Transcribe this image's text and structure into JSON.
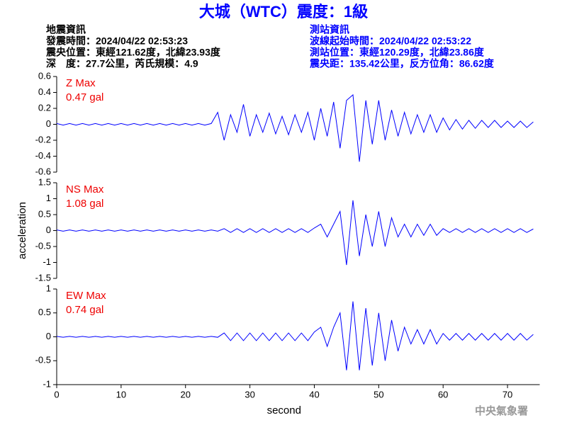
{
  "header": {
    "title": "大城（WTC）震度：1級",
    "left": [
      "地震資訊",
      "發震時間：2024/04/22 02:53:23",
      "震央位置：東經121.62度，北緯23.93度",
      "深　度：27.7公里，芮氏規模：4.9"
    ],
    "right": [
      "測站資訊",
      "波線起始時間：2024/04/22 02:53:22",
      "測站位置：東經120.29度，北緯23.86度",
      "震央距：135.42公里，反方位角：86.62度"
    ]
  },
  "footer": "中央氣象署",
  "chart_data": [
    {
      "type": "line",
      "label": "Z Max",
      "max_label": "0.47 gal",
      "color": "#0000ff",
      "xlim": [
        0,
        75
      ],
      "ylim": [
        -0.6,
        0.6
      ],
      "yticks": [
        0.6,
        0.4,
        0.2,
        0,
        -0.2,
        -0.4,
        -0.6
      ],
      "x": [
        0,
        1,
        2,
        3,
        4,
        5,
        6,
        7,
        8,
        9,
        10,
        11,
        12,
        13,
        14,
        15,
        16,
        17,
        18,
        19,
        20,
        21,
        22,
        23,
        24,
        25,
        26,
        27,
        28,
        29,
        30,
        31,
        32,
        33,
        34,
        35,
        36,
        37,
        38,
        39,
        40,
        41,
        42,
        43,
        44,
        45,
        46,
        47,
        48,
        49,
        50,
        51,
        52,
        53,
        54,
        55,
        56,
        57,
        58,
        59,
        60,
        61,
        62,
        63,
        64,
        65,
        66,
        67,
        68,
        69,
        70,
        71,
        72,
        73,
        74
      ],
      "values": [
        0.01,
        -0.01,
        0.01,
        -0.01,
        0.01,
        -0.01,
        0.01,
        -0.01,
        0.01,
        -0.01,
        0.01,
        -0.01,
        0.01,
        -0.01,
        0.01,
        -0.01,
        0.01,
        -0.01,
        0.01,
        -0.01,
        0.01,
        -0.01,
        0.01,
        -0.01,
        0.01,
        0.15,
        -0.2,
        0.12,
        -0.1,
        0.25,
        -0.15,
        0.12,
        -0.1,
        0.14,
        -0.12,
        0.1,
        -0.13,
        0.12,
        -0.1,
        0.15,
        -0.2,
        0.2,
        -0.15,
        0.28,
        -0.3,
        0.3,
        0.37,
        -0.47,
        0.3,
        -0.25,
        0.3,
        -0.2,
        0.18,
        -0.15,
        0.15,
        -0.12,
        0.12,
        -0.1,
        0.12,
        -0.1,
        0.08,
        -0.07,
        0.06,
        -0.06,
        0.05,
        -0.05,
        0.05,
        -0.04,
        0.05,
        -0.04,
        0.04,
        -0.04,
        0.04,
        -0.04,
        0.03
      ]
    },
    {
      "type": "line",
      "label": "NS Max",
      "max_label": "1.08 gal",
      "color": "#0000ff",
      "ylabel": "acceleration",
      "xlim": [
        0,
        75
      ],
      "ylim": [
        -1.5,
        1.5
      ],
      "yticks": [
        1.5,
        1,
        0.5,
        0,
        -0.5,
        -1,
        -1.5
      ],
      "x": [
        0,
        1,
        2,
        3,
        4,
        5,
        6,
        7,
        8,
        9,
        10,
        11,
        12,
        13,
        14,
        15,
        16,
        17,
        18,
        19,
        20,
        21,
        22,
        23,
        24,
        25,
        26,
        27,
        28,
        29,
        30,
        31,
        32,
        33,
        34,
        35,
        36,
        37,
        38,
        39,
        40,
        41,
        42,
        43,
        44,
        45,
        46,
        47,
        48,
        49,
        50,
        51,
        52,
        53,
        54,
        55,
        56,
        57,
        58,
        59,
        60,
        61,
        62,
        63,
        64,
        65,
        66,
        67,
        68,
        69,
        70,
        71,
        72,
        73,
        74
      ],
      "values": [
        0.02,
        -0.02,
        0.02,
        -0.02,
        0.02,
        -0.02,
        0.02,
        -0.02,
        0.02,
        -0.02,
        0.02,
        -0.02,
        0.02,
        -0.02,
        0.02,
        -0.02,
        0.02,
        -0.02,
        0.02,
        -0.02,
        0.02,
        -0.02,
        0.02,
        -0.02,
        0.02,
        -0.02,
        0.06,
        -0.06,
        0.06,
        -0.06,
        0.06,
        -0.06,
        0.06,
        -0.06,
        0.06,
        -0.06,
        0.06,
        -0.06,
        0.06,
        -0.06,
        0.08,
        0.2,
        -0.2,
        0.2,
        0.6,
        -1.08,
        0.95,
        -0.8,
        0.5,
        -0.5,
        0.6,
        -0.5,
        0.4,
        -0.2,
        0.2,
        -0.2,
        0.2,
        -0.15,
        0.2,
        -0.15,
        0.06,
        -0.06,
        0.06,
        -0.06,
        0.06,
        -0.06,
        0.06,
        -0.06,
        0.06,
        -0.06,
        0.06,
        -0.06,
        0.06,
        -0.06,
        0.05
      ]
    },
    {
      "type": "line",
      "label": "EW Max",
      "max_label": "0.74 gal",
      "color": "#0000ff",
      "xlabel": "second",
      "xlim": [
        0,
        75
      ],
      "ylim": [
        -1,
        1
      ],
      "yticks": [
        1,
        0.5,
        0,
        -0.5,
        -1
      ],
      "xticks": [
        0,
        10,
        20,
        30,
        40,
        50,
        60,
        70
      ],
      "x": [
        0,
        1,
        2,
        3,
        4,
        5,
        6,
        7,
        8,
        9,
        10,
        11,
        12,
        13,
        14,
        15,
        16,
        17,
        18,
        19,
        20,
        21,
        22,
        23,
        24,
        25,
        26,
        27,
        28,
        29,
        30,
        31,
        32,
        33,
        34,
        35,
        36,
        37,
        38,
        39,
        40,
        41,
        42,
        43,
        44,
        45,
        46,
        47,
        48,
        49,
        50,
        51,
        52,
        53,
        54,
        55,
        56,
        57,
        58,
        59,
        60,
        61,
        62,
        63,
        64,
        65,
        66,
        67,
        68,
        69,
        70,
        71,
        72,
        73,
        74
      ],
      "values": [
        0.01,
        -0.01,
        0.01,
        -0.01,
        0.01,
        -0.01,
        0.01,
        -0.01,
        0.01,
        -0.01,
        0.01,
        -0.01,
        0.01,
        -0.01,
        0.01,
        -0.01,
        0.01,
        -0.01,
        0.01,
        -0.01,
        0.01,
        -0.01,
        0.01,
        -0.01,
        0.01,
        -0.01,
        0.08,
        -0.08,
        0.08,
        -0.08,
        0.08,
        -0.08,
        0.08,
        -0.08,
        0.08,
        -0.08,
        0.08,
        -0.08,
        0.08,
        -0.08,
        0.1,
        0.2,
        -0.2,
        0.2,
        0.5,
        -0.7,
        0.74,
        -0.7,
        0.6,
        -0.6,
        0.5,
        -0.5,
        0.35,
        -0.3,
        0.2,
        -0.15,
        0.15,
        -0.15,
        0.15,
        -0.15,
        0.07,
        -0.07,
        0.07,
        -0.07,
        0.07,
        -0.07,
        0.07,
        -0.07,
        0.07,
        -0.07,
        0.07,
        -0.07,
        0.07,
        -0.07,
        0.05
      ]
    }
  ]
}
